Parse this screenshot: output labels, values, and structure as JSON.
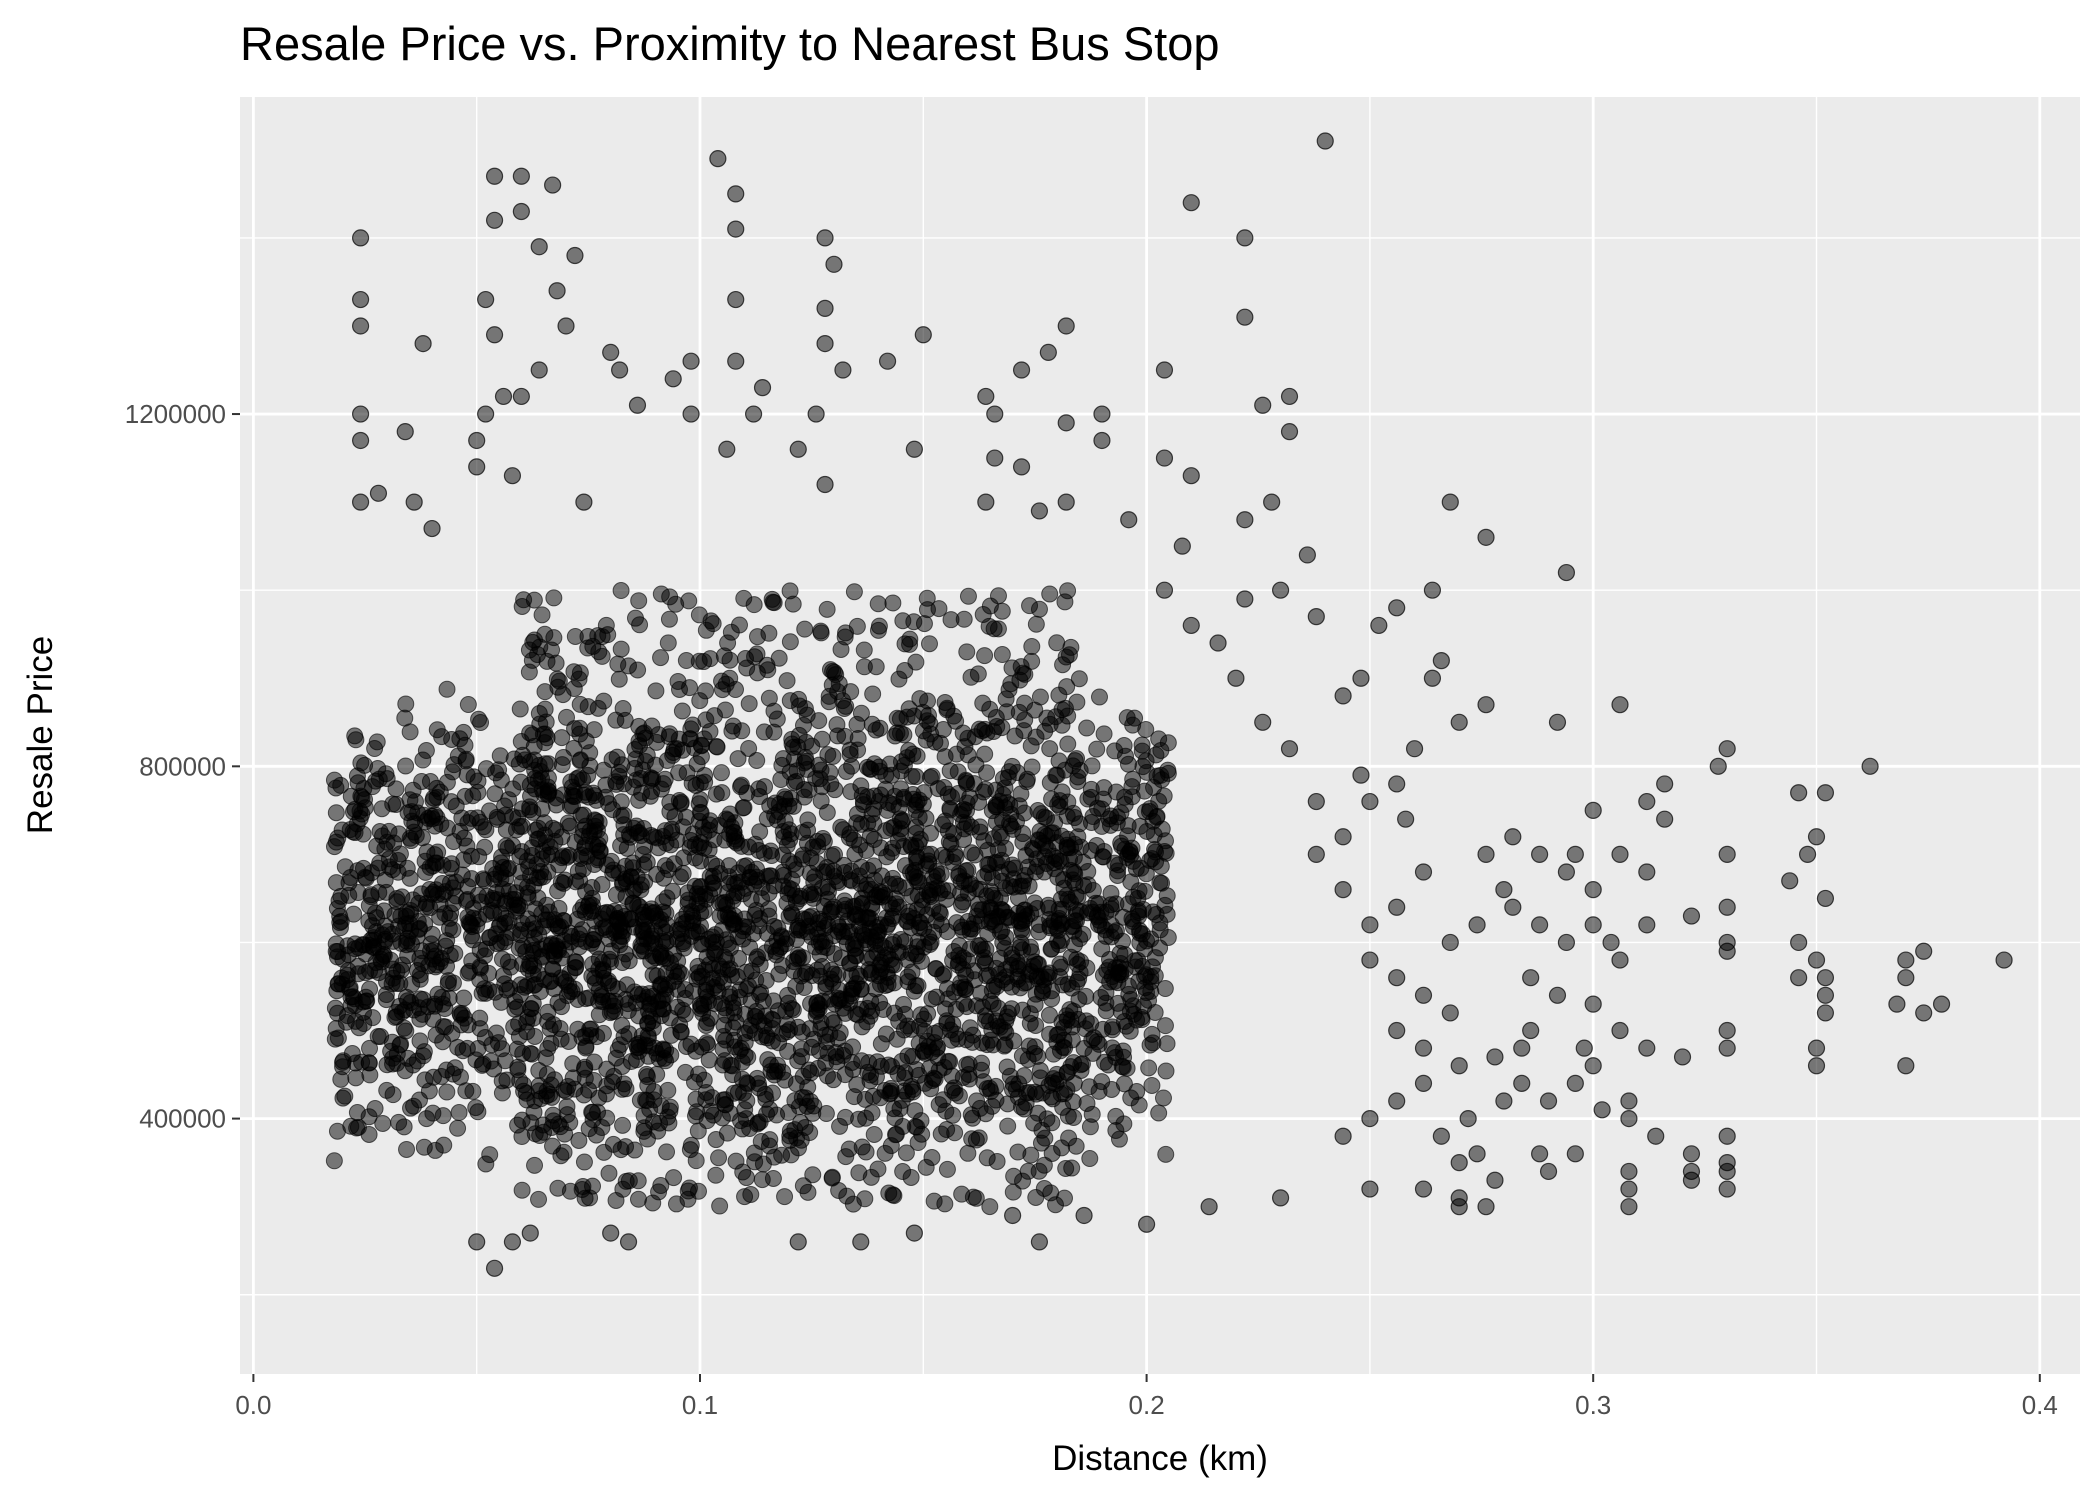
{
  "chart_data": {
    "type": "scatter",
    "title": "Resale Price vs. Proximity to Nearest Bus Stop",
    "xlabel": "Distance (km)",
    "ylabel": "Resale Price",
    "xlim": [
      -0.003,
      0.409
    ],
    "ylim": [
      110000,
      1560000
    ],
    "x_ticks": [
      0.0,
      0.1,
      0.2,
      0.3,
      0.4
    ],
    "x_tick_labels": [
      "0.0",
      "0.1",
      "0.2",
      "0.3",
      "0.4"
    ],
    "y_ticks": [
      400000,
      800000,
      1200000
    ],
    "y_tick_labels": [
      "400000",
      "800000",
      "1200000"
    ],
    "grid": true,
    "legend": "none",
    "colors": {
      "panel": "#ebebeb",
      "grid": "#ffffff",
      "point": "#000000"
    },
    "point_alpha": 0.5,
    "points": [
      [
        0.054,
        230000
      ],
      [
        0.24,
        1510000
      ],
      [
        0.104,
        1490000
      ],
      [
        0.054,
        1470000
      ],
      [
        0.06,
        1470000
      ],
      [
        0.067,
        1460000
      ],
      [
        0.108,
        1450000
      ],
      [
        0.21,
        1440000
      ],
      [
        0.06,
        1430000
      ],
      [
        0.054,
        1420000
      ],
      [
        0.108,
        1410000
      ],
      [
        0.024,
        1400000
      ],
      [
        0.128,
        1400000
      ],
      [
        0.222,
        1400000
      ],
      [
        0.064,
        1390000
      ],
      [
        0.072,
        1380000
      ],
      [
        0.13,
        1370000
      ],
      [
        0.068,
        1340000
      ],
      [
        0.052,
        1330000
      ],
      [
        0.108,
        1330000
      ],
      [
        0.024,
        1330000
      ],
      [
        0.128,
        1320000
      ],
      [
        0.222,
        1310000
      ],
      [
        0.024,
        1300000
      ],
      [
        0.054,
        1290000
      ],
      [
        0.07,
        1300000
      ],
      [
        0.182,
        1300000
      ],
      [
        0.15,
        1290000
      ],
      [
        0.128,
        1280000
      ],
      [
        0.038,
        1280000
      ],
      [
        0.08,
        1270000
      ],
      [
        0.178,
        1270000
      ],
      [
        0.098,
        1260000
      ],
      [
        0.108,
        1260000
      ],
      [
        0.142,
        1260000
      ],
      [
        0.172,
        1250000
      ],
      [
        0.204,
        1250000
      ],
      [
        0.064,
        1250000
      ],
      [
        0.132,
        1250000
      ],
      [
        0.082,
        1250000
      ],
      [
        0.094,
        1240000
      ],
      [
        0.114,
        1230000
      ],
      [
        0.164,
        1220000
      ],
      [
        0.056,
        1220000
      ],
      [
        0.06,
        1220000
      ],
      [
        0.232,
        1220000
      ],
      [
        0.086,
        1210000
      ],
      [
        0.226,
        1210000
      ],
      [
        0.098,
        1200000
      ],
      [
        0.024,
        1200000
      ],
      [
        0.052,
        1200000
      ],
      [
        0.112,
        1200000
      ],
      [
        0.126,
        1200000
      ],
      [
        0.19,
        1200000
      ],
      [
        0.166,
        1200000
      ],
      [
        0.182,
        1190000
      ],
      [
        0.034,
        1180000
      ],
      [
        0.232,
        1180000
      ],
      [
        0.024,
        1170000
      ],
      [
        0.05,
        1170000
      ],
      [
        0.122,
        1160000
      ],
      [
        0.19,
        1170000
      ],
      [
        0.106,
        1160000
      ],
      [
        0.148,
        1160000
      ],
      [
        0.204,
        1150000
      ],
      [
        0.166,
        1150000
      ],
      [
        0.172,
        1140000
      ],
      [
        0.05,
        1140000
      ],
      [
        0.058,
        1130000
      ],
      [
        0.21,
        1130000
      ],
      [
        0.128,
        1120000
      ],
      [
        0.028,
        1110000
      ],
      [
        0.074,
        1100000
      ],
      [
        0.024,
        1100000
      ],
      [
        0.036,
        1100000
      ],
      [
        0.182,
        1100000
      ],
      [
        0.228,
        1100000
      ],
      [
        0.164,
        1100000
      ],
      [
        0.176,
        1090000
      ],
      [
        0.268,
        1100000
      ],
      [
        0.222,
        1080000
      ],
      [
        0.196,
        1080000
      ],
      [
        0.04,
        1070000
      ],
      [
        0.276,
        1060000
      ],
      [
        0.208,
        1050000
      ],
      [
        0.236,
        1040000
      ],
      [
        0.294,
        1020000
      ],
      [
        0.264,
        1000000
      ],
      [
        0.222,
        990000
      ],
      [
        0.23,
        1000000
      ],
      [
        0.238,
        970000
      ],
      [
        0.252,
        960000
      ],
      [
        0.256,
        980000
      ],
      [
        0.306,
        870000
      ],
      [
        0.292,
        850000
      ],
      [
        0.276,
        870000
      ],
      [
        0.27,
        850000
      ],
      [
        0.33,
        820000
      ],
      [
        0.362,
        800000
      ],
      [
        0.328,
        800000
      ],
      [
        0.316,
        780000
      ],
      [
        0.346,
        770000
      ],
      [
        0.352,
        770000
      ],
      [
        0.312,
        760000
      ],
      [
        0.3,
        750000
      ],
      [
        0.316,
        740000
      ],
      [
        0.35,
        720000
      ],
      [
        0.348,
        700000
      ],
      [
        0.33,
        700000
      ],
      [
        0.344,
        670000
      ],
      [
        0.352,
        650000
      ],
      [
        0.33,
        640000
      ],
      [
        0.322,
        630000
      ],
      [
        0.3,
        620000
      ],
      [
        0.312,
        620000
      ],
      [
        0.33,
        600000
      ],
      [
        0.346,
        600000
      ],
      [
        0.304,
        600000
      ],
      [
        0.33,
        590000
      ],
      [
        0.35,
        580000
      ],
      [
        0.392,
        580000
      ],
      [
        0.374,
        590000
      ],
      [
        0.37,
        580000
      ],
      [
        0.37,
        560000
      ],
      [
        0.378,
        530000
      ],
      [
        0.374,
        520000
      ],
      [
        0.368,
        530000
      ],
      [
        0.352,
        560000
      ],
      [
        0.346,
        560000
      ],
      [
        0.352,
        540000
      ],
      [
        0.352,
        520000
      ],
      [
        0.35,
        480000
      ],
      [
        0.35,
        460000
      ],
      [
        0.37,
        460000
      ],
      [
        0.33,
        500000
      ],
      [
        0.33,
        480000
      ],
      [
        0.32,
        470000
      ],
      [
        0.312,
        480000
      ],
      [
        0.308,
        420000
      ],
      [
        0.308,
        400000
      ],
      [
        0.302,
        410000
      ],
      [
        0.314,
        380000
      ],
      [
        0.33,
        380000
      ],
      [
        0.322,
        360000
      ],
      [
        0.33,
        350000
      ],
      [
        0.33,
        340000
      ],
      [
        0.33,
        320000
      ],
      [
        0.322,
        340000
      ],
      [
        0.322,
        330000
      ],
      [
        0.308,
        340000
      ],
      [
        0.308,
        320000
      ],
      [
        0.308,
        300000
      ],
      [
        0.296,
        360000
      ],
      [
        0.288,
        360000
      ],
      [
        0.29,
        340000
      ],
      [
        0.27,
        310000
      ],
      [
        0.27,
        300000
      ],
      [
        0.276,
        300000
      ],
      [
        0.278,
        330000
      ],
      [
        0.27,
        350000
      ],
      [
        0.262,
        320000
      ],
      [
        0.176,
        260000
      ],
      [
        0.122,
        260000
      ],
      [
        0.136,
        260000
      ],
      [
        0.148,
        270000
      ],
      [
        0.084,
        260000
      ],
      [
        0.058,
        260000
      ],
      [
        0.062,
        270000
      ],
      [
        0.05,
        260000
      ],
      [
        0.08,
        270000
      ],
      [
        0.2,
        280000
      ],
      [
        0.186,
        290000
      ],
      [
        0.17,
        290000
      ],
      [
        0.214,
        300000
      ],
      [
        0.23,
        310000
      ],
      [
        0.25,
        320000
      ],
      [
        0.258,
        740000
      ],
      [
        0.248,
        790000
      ],
      [
        0.26,
        820000
      ],
      [
        0.244,
        880000
      ],
      [
        0.266,
        920000
      ],
      [
        0.264,
        900000
      ],
      [
        0.248,
        900000
      ],
      [
        0.276,
        700000
      ],
      [
        0.282,
        720000
      ],
      [
        0.288,
        700000
      ],
      [
        0.296,
        700000
      ],
      [
        0.294,
        680000
      ],
      [
        0.3,
        660000
      ],
      [
        0.306,
        700000
      ],
      [
        0.312,
        680000
      ],
      [
        0.282,
        640000
      ],
      [
        0.288,
        620000
      ],
      [
        0.294,
        600000
      ],
      [
        0.306,
        580000
      ],
      [
        0.286,
        560000
      ],
      [
        0.292,
        540000
      ],
      [
        0.3,
        530000
      ],
      [
        0.306,
        500000
      ],
      [
        0.298,
        480000
      ],
      [
        0.286,
        500000
      ],
      [
        0.284,
        480000
      ],
      [
        0.278,
        470000
      ],
      [
        0.27,
        460000
      ],
      [
        0.296,
        440000
      ],
      [
        0.3,
        460000
      ],
      [
        0.28,
        420000
      ],
      [
        0.272,
        400000
      ],
      [
        0.266,
        380000
      ],
      [
        0.274,
        360000
      ],
      [
        0.284,
        440000
      ],
      [
        0.29,
        420000
      ],
      [
        0.262,
        440000
      ],
      [
        0.256,
        420000
      ],
      [
        0.25,
        400000
      ],
      [
        0.244,
        380000
      ],
      [
        0.262,
        480000
      ],
      [
        0.256,
        500000
      ],
      [
        0.268,
        520000
      ],
      [
        0.262,
        540000
      ],
      [
        0.256,
        560000
      ],
      [
        0.25,
        580000
      ],
      [
        0.268,
        600000
      ],
      [
        0.274,
        620000
      ],
      [
        0.28,
        660000
      ],
      [
        0.262,
        680000
      ],
      [
        0.256,
        640000
      ],
      [
        0.25,
        620000
      ],
      [
        0.244,
        660000
      ],
      [
        0.238,
        700000
      ],
      [
        0.244,
        720000
      ],
      [
        0.25,
        760000
      ],
      [
        0.256,
        780000
      ],
      [
        0.238,
        760000
      ],
      [
        0.232,
        820000
      ],
      [
        0.226,
        850000
      ],
      [
        0.22,
        900000
      ],
      [
        0.216,
        940000
      ],
      [
        0.21,
        960000
      ],
      [
        0.204,
        1000000
      ]
    ],
    "dense_region": {
      "cluster_x": [
        0.018,
        0.205
      ],
      "cluster_y": [
        330000,
        900000
      ],
      "band_x": [
        0.06,
        0.185
      ],
      "band_y": [
        300000,
        1000000
      ]
    }
  }
}
